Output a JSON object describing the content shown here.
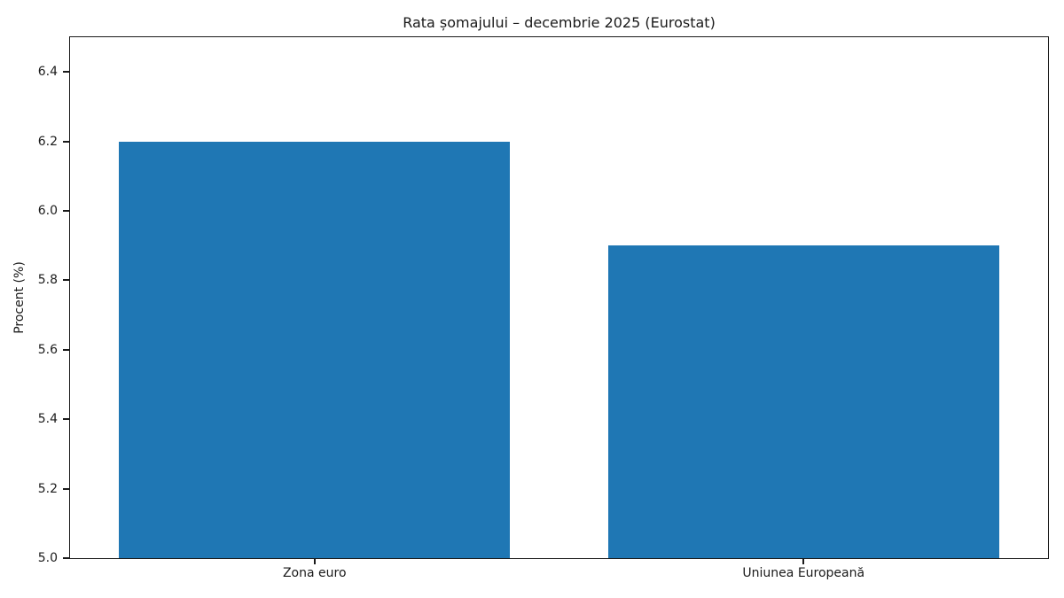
{
  "chart_data": {
    "type": "bar",
    "title": "Rata șomajului – decembrie 2025 (Eurostat)",
    "xlabel": "",
    "ylabel": "Procent (%)",
    "categories": [
      "Zona euro",
      "Uniunea Europeană"
    ],
    "values": [
      6.2,
      5.9
    ],
    "yticks": [
      5.0,
      5.2,
      5.4,
      5.6,
      5.8,
      6.0,
      6.2,
      6.4
    ],
    "ylim": [
      5.0,
      6.5
    ],
    "bar_color": "#1f77b4",
    "bar_width_fraction": 0.8,
    "grid": false,
    "legend": null
  }
}
